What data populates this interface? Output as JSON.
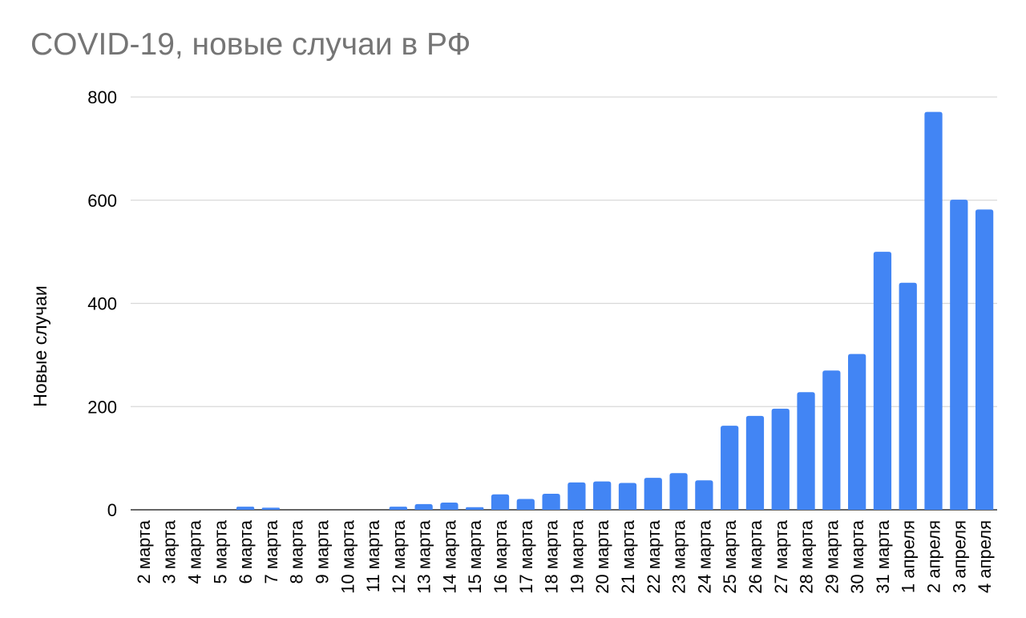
{
  "chart_data": {
    "type": "bar",
    "title": "COVID-19, новые случаи в РФ",
    "xlabel": "",
    "ylabel": "Новые случаи",
    "ylim": [
      0,
      800
    ],
    "yticks": [
      0,
      200,
      400,
      600,
      800
    ],
    "grid": true,
    "legend": "none",
    "bar_color": "#4285f4",
    "categories": [
      "2 марта",
      "3 марта",
      "4 марта",
      "5 марта",
      "6 марта",
      "7 марта",
      "8 марта",
      "9 марта",
      "10 марта",
      "11 марта",
      "12 марта",
      "13 марта",
      "14 марта",
      "15 марта",
      "16 марта",
      "17 марта",
      "18 марта",
      "19 марта",
      "20 марта",
      "21 марта",
      "22 марта",
      "23 марта",
      "24 марта",
      "25 марта",
      "26 марта",
      "27 марта",
      "28 марта",
      "29 марта",
      "30 марта",
      "31 марта",
      "1 апреля",
      "2 апреля",
      "3 апреля",
      "4 апреля"
    ],
    "values": [
      0,
      0,
      0,
      0,
      6,
      4,
      0,
      0,
      0,
      0,
      6,
      11,
      14,
      5,
      30,
      21,
      31,
      53,
      55,
      52,
      62,
      71,
      57,
      163,
      182,
      196,
      228,
      270,
      302,
      500,
      440,
      771,
      601,
      582
    ]
  }
}
